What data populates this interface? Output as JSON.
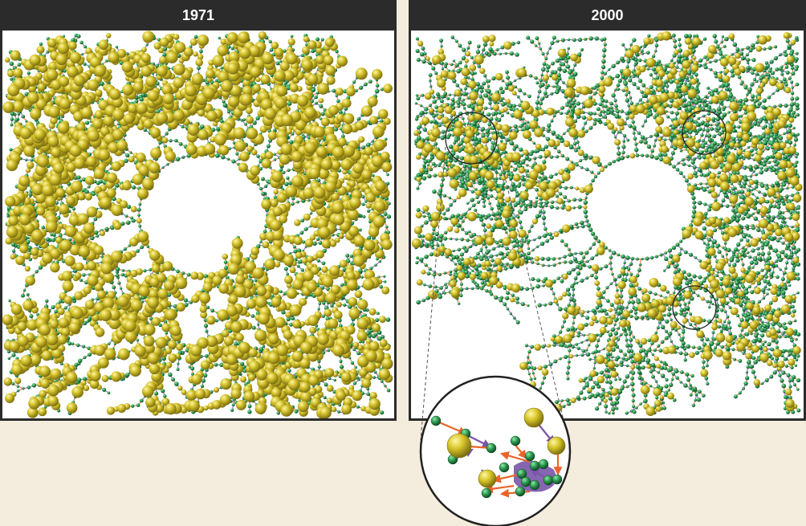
{
  "panels": [
    {
      "title": "1971"
    },
    {
      "title": "2000"
    }
  ],
  "colors": {
    "background": "#f4ecdc",
    "header": "#2b2b2b",
    "node_yellow": "#d4c22a",
    "node_green": "#2e9a52",
    "edge_orange": "#e8642a",
    "edge_purple": "#7a55a8"
  },
  "icons": [
    "magnified-cluster-lens"
  ]
}
